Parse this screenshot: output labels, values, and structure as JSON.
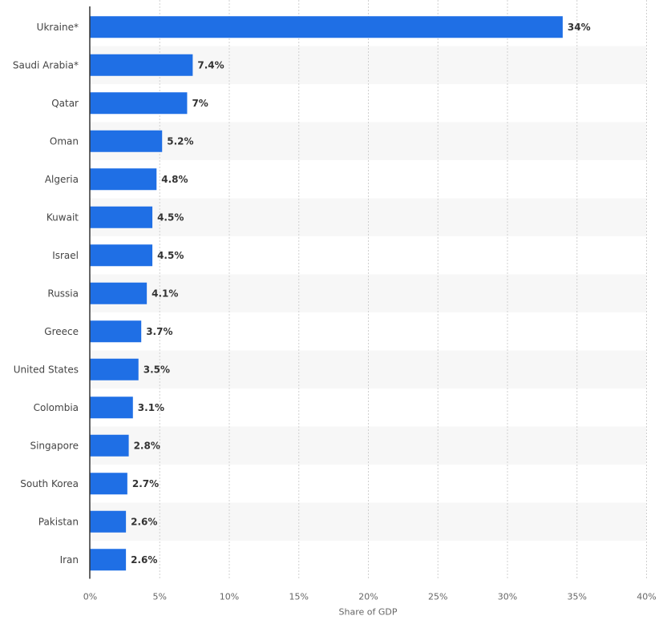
{
  "chart_data": {
    "type": "bar",
    "orientation": "horizontal",
    "categories": [
      "Ukraine*",
      "Saudi Arabia*",
      "Qatar",
      "Oman",
      "Algeria",
      "Kuwait",
      "Israel",
      "Russia",
      "Greece",
      "United States",
      "Colombia",
      "Singapore",
      "South Korea",
      "Pakistan",
      "Iran"
    ],
    "values": [
      34,
      7.4,
      7,
      5.2,
      4.8,
      4.5,
      4.5,
      4.1,
      3.7,
      3.5,
      3.1,
      2.8,
      2.7,
      2.6,
      2.6
    ],
    "value_labels": [
      "34%",
      "7.4%",
      "7%",
      "5.2%",
      "4.8%",
      "4.5%",
      "4.5%",
      "4.1%",
      "3.7%",
      "3.5%",
      "3.1%",
      "2.8%",
      "2.7%",
      "2.6%",
      "2.6%"
    ],
    "xlabel": "Share of GDP",
    "ylabel": "",
    "xlim": [
      0,
      40
    ],
    "x_ticks": [
      0,
      5,
      10,
      15,
      20,
      25,
      30,
      35,
      40
    ],
    "x_tick_labels": [
      "0%",
      "5%",
      "10%",
      "15%",
      "20%",
      "25%",
      "30%",
      "35%",
      "40%"
    ],
    "grid": "vertical dashed",
    "row_banding": true,
    "colors": {
      "bar": "#1f6fe5",
      "band": "#f7f7f7",
      "grid": "#d0d0d0",
      "axis": "#333333"
    }
  }
}
